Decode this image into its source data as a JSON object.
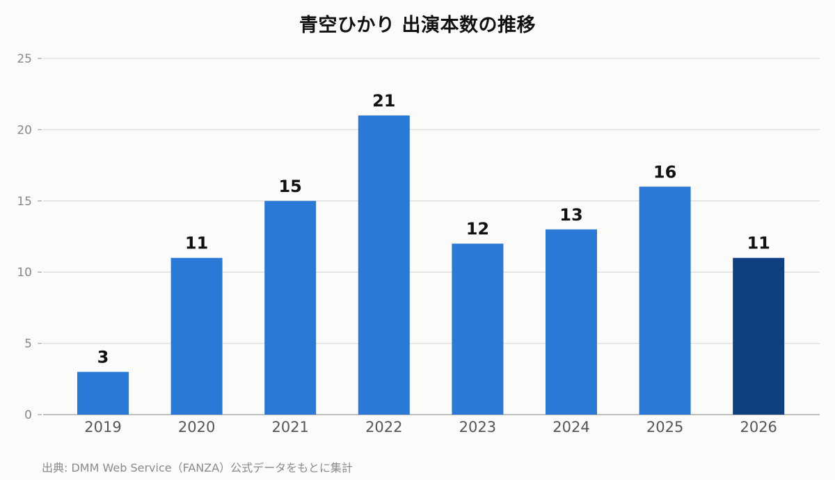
{
  "chart_data": {
    "type": "bar",
    "title": "青空ひかり 出演本数の推移",
    "xlabel": "",
    "ylabel": "",
    "categories": [
      "2019",
      "2020",
      "2021",
      "2022",
      "2023",
      "2024",
      "2025",
      "2026"
    ],
    "values": [
      3,
      11,
      15,
      21,
      12,
      13,
      16,
      11
    ],
    "value_labels": [
      "3",
      "11",
      "15",
      "21",
      "12",
      "13",
      "16",
      "11"
    ],
    "ylim": [
      0,
      25
    ],
    "yticks": [
      0,
      5,
      10,
      15,
      20,
      25
    ],
    "ytick_labels": [
      "0",
      "5",
      "10",
      "15",
      "20",
      "25"
    ],
    "grid": true,
    "legend": "none",
    "colors": {
      "bar": "#2a79d6",
      "highlight_bar": "#0f3f80",
      "grid": "#dddddd",
      "axis": "#aaaaaa",
      "tick_label": "#888888",
      "category_label": "#555555",
      "value_label": "#111111"
    },
    "highlight_index": 7
  },
  "footer": {
    "source": "出典: DMM Web Service（FANZA）公式データをもとに集計"
  }
}
